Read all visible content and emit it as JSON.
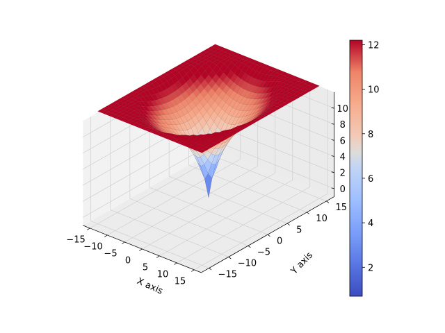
{
  "chart_data": {
    "type": "surface",
    "title": "",
    "xlabel": "X axis",
    "ylabel": "Y axis",
    "zlabel": "",
    "x_range": [
      -15,
      15
    ],
    "y_range": [
      -15,
      15
    ],
    "z_range": [
      -1,
      12
    ],
    "x_ticks": [
      -15,
      -10,
      -5,
      0,
      5,
      10,
      15
    ],
    "y_ticks": [
      -15,
      -10,
      -5,
      0,
      5,
      10,
      15
    ],
    "z_ticks": [
      0,
      2,
      4,
      6,
      8,
      10
    ],
    "x_tick_labels": [
      "−15",
      "−10",
      "−5",
      "0",
      "5",
      "10",
      "15"
    ],
    "y_tick_labels": [
      "−15",
      "−10",
      "−5",
      "0",
      "5",
      "10",
      "15"
    ],
    "z_tick_labels": [
      "0",
      "2",
      "4",
      "6",
      "8",
      "10"
    ],
    "surface_samples": [
      {
        "x": 0,
        "y": 0,
        "z": 0.7
      },
      {
        "x": 2,
        "y": 0,
        "z": 4.0
      },
      {
        "x": 5,
        "y": 0,
        "z": 6.5
      },
      {
        "x": 10,
        "y": 0,
        "z": 8.6
      },
      {
        "x": 15,
        "y": 0,
        "z": 10.0
      },
      {
        "x": 15,
        "y": 15,
        "z": 12.2
      },
      {
        "x": -15,
        "y": -15,
        "z": 12.2
      }
    ],
    "colormap": "coolwarm",
    "colorbar": {
      "min": 0.7,
      "max": 12.2,
      "ticks": [
        2,
        4,
        6,
        8,
        10,
        12
      ],
      "tick_labels": [
        "2",
        "4",
        "6",
        "8",
        "10",
        "12"
      ],
      "low_color": "#3b4cc0",
      "mid_color": "#dddcdc",
      "high_color": "#b40426"
    },
    "grid": true
  }
}
